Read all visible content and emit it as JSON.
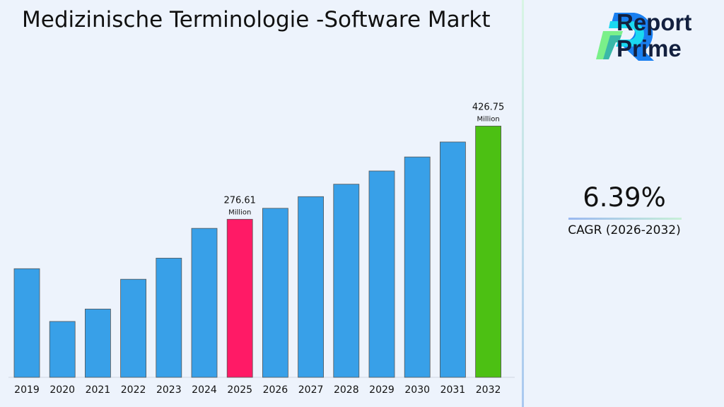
{
  "title": "Medizinische Terminologie -Software Markt",
  "logo": {
    "line1": "Report",
    "line2": "Prime"
  },
  "cagr": {
    "value": "6.39%",
    "label": "CAGR (2026-2032)"
  },
  "colors": {
    "default_bar": "#38a0e8",
    "highlight_2025": "#ff1a66",
    "highlight_2032": "#4cc013"
  },
  "chart_data": {
    "type": "bar",
    "categories": [
      "2019",
      "2020",
      "2021",
      "2022",
      "2023",
      "2024",
      "2025",
      "2026",
      "2027",
      "2028",
      "2029",
      "2030",
      "2031",
      "2032"
    ],
    "values": [
      197,
      112,
      132,
      180,
      214,
      262,
      276.61,
      294.3,
      313.1,
      333.1,
      354.4,
      377.0,
      401.1,
      426.75
    ],
    "data_labels": [
      {
        "category": "2025",
        "value": "276.61",
        "unit": "Million"
      },
      {
        "category": "2032",
        "value": "426.75",
        "unit": "Million"
      }
    ],
    "title": "",
    "xlabel": "",
    "ylabel": "",
    "ylim": [
      22,
      450
    ],
    "grid": false
  }
}
